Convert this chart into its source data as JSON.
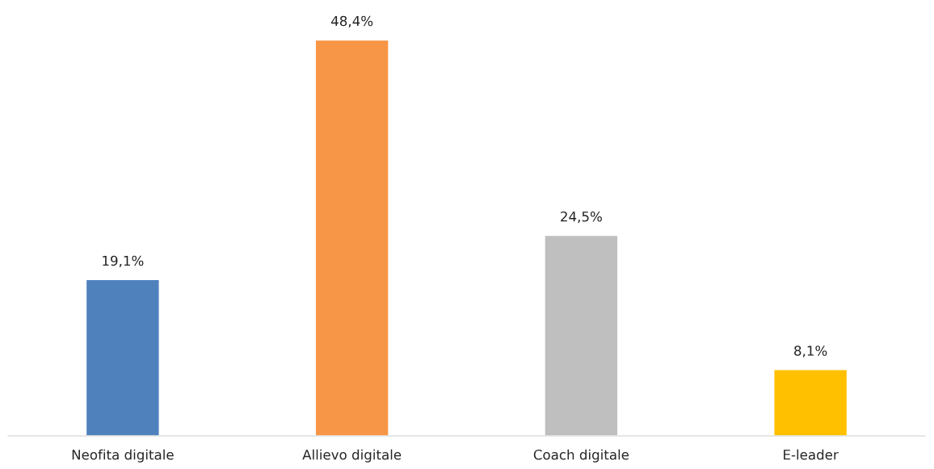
{
  "chart_data": {
    "type": "bar",
    "categories": [
      "Neofita digitale",
      "Allievo digitale",
      "Coach digitale",
      "E-leader"
    ],
    "values": [
      19.1,
      48.4,
      24.5,
      8.1
    ],
    "colors": [
      "#4f81bd",
      "#f79646",
      "#bfbfbf",
      "#ffc000"
    ],
    "value_labels": [
      "19,1%",
      "48,4%",
      "24,5%",
      "8,1%"
    ],
    "grid": false,
    "legend": false,
    "tick_labels": "x"
  }
}
